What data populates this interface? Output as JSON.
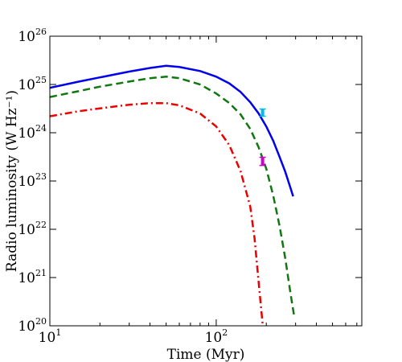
{
  "chart_data": {
    "type": "line",
    "title": "",
    "xlabel": "Time (Myr)",
    "ylabel": "Radio luminosity (W Hz⁻¹)",
    "xscale": "log",
    "yscale": "log",
    "xlim": [
      10,
      750
    ],
    "ylim": [
      1e+20,
      1e+26
    ],
    "grid": false,
    "legend": "none",
    "x_ticks": [
      {
        "value": 10,
        "base": "10",
        "exp": "1"
      },
      {
        "value": 100,
        "base": "10",
        "exp": "2"
      }
    ],
    "y_ticks": [
      {
        "value": 1e+20,
        "base": "10",
        "exp": "20"
      },
      {
        "value": 1e+21,
        "base": "10",
        "exp": "21"
      },
      {
        "value": 1e+22,
        "base": "10",
        "exp": "22"
      },
      {
        "value": 1e+23,
        "base": "10",
        "exp": "23"
      },
      {
        "value": 1e+24,
        "base": "10",
        "exp": "24"
      },
      {
        "value": 1e+25,
        "base": "10",
        "exp": "25"
      },
      {
        "value": 1e+26,
        "base": "10",
        "exp": "26"
      }
    ],
    "series": [
      {
        "color": "#0000ee",
        "style": "solid",
        "x": [
          10,
          15,
          20,
          30,
          40,
          50,
          60,
          80,
          100,
          120,
          140,
          160,
          180,
          200,
          220,
          240,
          260,
          280,
          290
        ],
        "y": [
          8.5e+24,
          1.15e+25,
          1.4e+25,
          1.85e+25,
          2.2e+25,
          2.45e+25,
          2.3e+25,
          1.9e+25,
          1.45e+25,
          1.05e+25,
          7e+24,
          4.3e+24,
          2.5e+24,
          1.35e+24,
          6.8e+23,
          3.2e+23,
          1.55e+23,
          7e+22,
          4.8e+22
        ]
      },
      {
        "color": "#117711",
        "style": "dashed",
        "x": [
          10,
          15,
          20,
          30,
          40,
          50,
          60,
          80,
          100,
          120,
          140,
          160,
          180,
          200,
          220,
          240,
          260,
          280,
          295
        ],
        "y": [
          5.5e+24,
          7.3e+24,
          9e+24,
          1.15e+25,
          1.35e+25,
          1.45e+25,
          1.35e+25,
          1e+25,
          6.5e+24,
          4.1e+24,
          2.4e+24,
          1.2e+24,
          5e+23,
          1.8e+23,
          5e+22,
          1.2e+22,
          2.5e+21,
          4.5e+20,
          1.5e+20
        ]
      },
      {
        "color": "#ee0000",
        "style": "dashdot",
        "x": [
          10,
          15,
          20,
          30,
          40,
          50,
          60,
          80,
          100,
          120,
          140,
          160,
          170,
          180,
          190
        ],
        "y": [
          2.2e+24,
          2.8e+24,
          3.2e+24,
          3.8e+24,
          4.1e+24,
          4.1e+24,
          3.7e+24,
          2.5e+24,
          1.35e+24,
          5.5e+23,
          1.6e+23,
          3e+22,
          6.5e+21,
          8e+20,
          1.1e+20
        ]
      }
    ],
    "markers": [
      {
        "color": "#00bbee",
        "x": 190,
        "y": 2.6e+24,
        "ylow": 2.2e+24,
        "yhigh": 3.1e+24
      },
      {
        "color": "#cc00cc",
        "x": 190,
        "y": 2.6e+23,
        "ylow": 2.1e+23,
        "yhigh": 3.1e+23
      }
    ]
  }
}
